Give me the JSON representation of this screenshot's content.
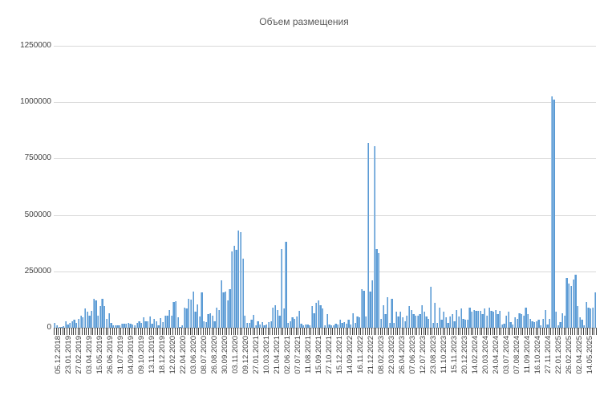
{
  "chart_data": {
    "type": "bar",
    "title": "Объем размещения",
    "xlabel": "",
    "ylabel": "",
    "ylim": [
      0,
      1250000
    ],
    "yticks": [
      0,
      250000,
      500000,
      750000,
      1000000,
      1250000
    ],
    "ytick_labels": [
      "0",
      "250000",
      "500000",
      "750000",
      "1000000",
      "1250000"
    ],
    "grid": true,
    "legend": null,
    "color": "#5b9bd5",
    "x_tick_labels": [
      "05.12.2018",
      "23.01.2019",
      "27.02.2019",
      "03.04.2019",
      "15.05.2019",
      "26.06.2019",
      "31.07.2019",
      "04.09.2019",
      "09.10.2019",
      "13.11.2019",
      "18.12.2019",
      "12.02.2020",
      "22.04.2020",
      "03.06.2020",
      "08.07.2020",
      "26.08.2020",
      "30.09.2020",
      "03.11.2020",
      "09.12.2020",
      "27.01.2021",
      "10.03.2021",
      "21.04.2021",
      "02.06.2021",
      "07.07.2021",
      "11.08.2021",
      "15.09.2021",
      "27.10.2021",
      "15.12.2021",
      "14.09.2022",
      "16.11.2022",
      "21.12.2022",
      "08.02.2023",
      "22.03.2023",
      "26.04.2023",
      "07.06.2023",
      "12.07.2023",
      "23.08.2023",
      "11.10.2023",
      "15.11.2023",
      "20.12.2023",
      "14.02.2024",
      "20.03.2024",
      "24.04.2024",
      "03.07.2024",
      "07.08.2024",
      "11.09.2024",
      "16.10.2024",
      "27.11.2024",
      "22.01.2025",
      "26.02.2025",
      "02.04.2025",
      "14.05.2025"
    ],
    "values": [
      20000,
      12000,
      5000,
      3000,
      8000,
      30000,
      15000,
      20000,
      28000,
      35000,
      22000,
      40000,
      55000,
      45000,
      85000,
      70000,
      55000,
      75000,
      130000,
      120000,
      55000,
      95000,
      130000,
      95000,
      40000,
      65000,
      20000,
      12000,
      10000,
      10000,
      12000,
      18000,
      18000,
      18000,
      20000,
      18000,
      15000,
      12000,
      20000,
      28000,
      20000,
      45000,
      30000,
      30000,
      50000,
      18000,
      40000,
      30000,
      12000,
      42000,
      25000,
      55000,
      55000,
      78000,
      55000,
      115000,
      118000,
      48000,
      3000,
      10000,
      90000,
      85000,
      130000,
      125000,
      160000,
      70000,
      105000,
      50000,
      155000,
      30000,
      25000,
      60000,
      65000,
      55000,
      30000,
      90000,
      80000,
      210000,
      155000,
      160000,
      120000,
      170000,
      340000,
      365000,
      345000,
      430000,
      425000,
      305000,
      55000,
      20000,
      22000,
      35000,
      58000,
      10000,
      30000,
      15000,
      25000,
      10000,
      15000,
      25000,
      30000,
      90000,
      100000,
      80000,
      55000,
      350000,
      85000,
      380000,
      20000,
      30000,
      45000,
      40000,
      50000,
      75000,
      18000,
      10000,
      15000,
      15000,
      12000,
      95000,
      65000,
      110000,
      120000,
      100000,
      85000,
      10000,
      60000,
      15000,
      12000,
      10000,
      18000,
      15000,
      35000,
      20000,
      25000,
      18000,
      35000,
      15000,
      65000,
      22000,
      50000,
      45000,
      170000,
      165000,
      50000,
      820000,
      160000,
      210000,
      805000,
      350000,
      330000,
      40000,
      100000,
      60000,
      135000,
      20000,
      130000,
      20000,
      70000,
      50000,
      70000,
      45000,
      30000,
      55000,
      95000,
      80000,
      60000,
      55000,
      55000,
      60000,
      100000,
      70000,
      50000,
      40000,
      180000,
      20000,
      110000,
      20000,
      90000,
      35000,
      70000,
      45000,
      20000,
      50000,
      60000,
      30000,
      80000,
      50000,
      85000,
      40000,
      35000,
      35000,
      90000,
      70000,
      80000,
      75000,
      75000,
      75000,
      60000,
      85000,
      55000,
      90000,
      75000,
      70000,
      80000,
      60000,
      75000,
      15000,
      18000,
      55000,
      70000,
      25000,
      15000,
      45000,
      40000,
      65000,
      60000,
      55000,
      90000,
      60000,
      40000,
      30000,
      25000,
      30000,
      35000,
      10000,
      40000,
      80000,
      15000,
      40000,
      1025000,
      1010000,
      70000,
      10000,
      25000,
      65000,
      55000,
      220000,
      195000,
      185000,
      215000,
      235000,
      95000,
      45000,
      35000,
      10000,
      115000,
      90000,
      85000,
      90000,
      155000
    ]
  }
}
